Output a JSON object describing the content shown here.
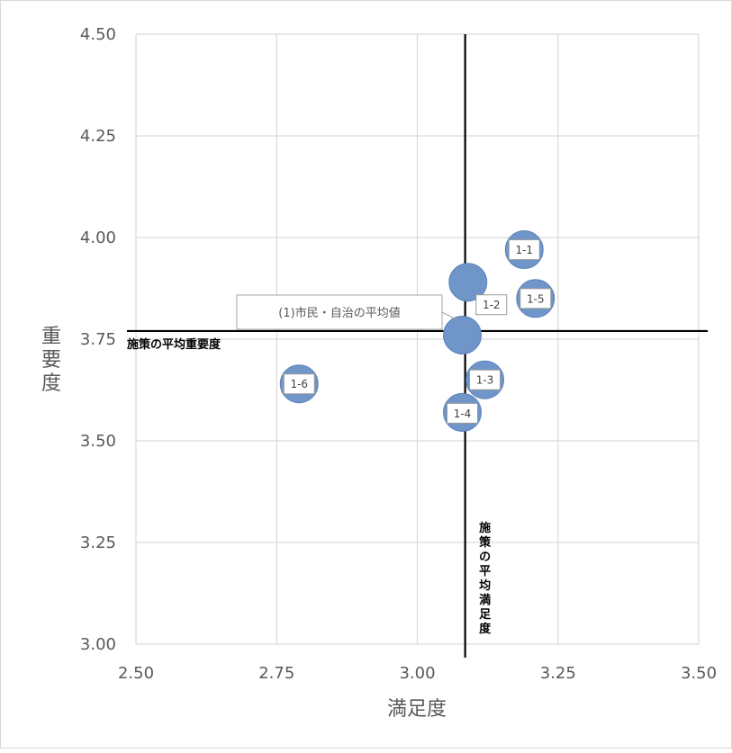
{
  "chart_data": {
    "type": "scatter",
    "xlabel": "満足度",
    "ylabel": "重要度",
    "xlim": [
      2.5,
      3.5
    ],
    "ylim": [
      3.0,
      4.5
    ],
    "x_ticks": [
      "2.50",
      "2.75",
      "3.00",
      "3.25",
      "3.50"
    ],
    "y_ticks": [
      "3.00",
      "3.25",
      "3.50",
      "3.75",
      "4.00",
      "4.25",
      "4.50"
    ],
    "grid": true,
    "points": [
      {
        "label": "1-1",
        "x": 3.19,
        "y": 3.97
      },
      {
        "label": "1-2",
        "x": 3.09,
        "y": 3.89
      },
      {
        "label": "1-3",
        "x": 3.12,
        "y": 3.65
      },
      {
        "label": "1-4",
        "x": 3.08,
        "y": 3.57
      },
      {
        "label": "1-5",
        "x": 3.21,
        "y": 3.85
      },
      {
        "label": "1-6",
        "x": 2.79,
        "y": 3.64
      },
      {
        "label": "(1)市民・自治の平均値",
        "x": 3.08,
        "y": 3.76
      }
    ],
    "reference_lines": {
      "x_value": 3.085,
      "x_label": "施策の平均満足度",
      "y_value": 3.77,
      "y_label": "施策の平均重要度"
    },
    "colors": {
      "bubble": "#6f95c9",
      "grid": "#d9d9d9",
      "reference_line": "#000000",
      "tick_label": "#595959"
    }
  }
}
